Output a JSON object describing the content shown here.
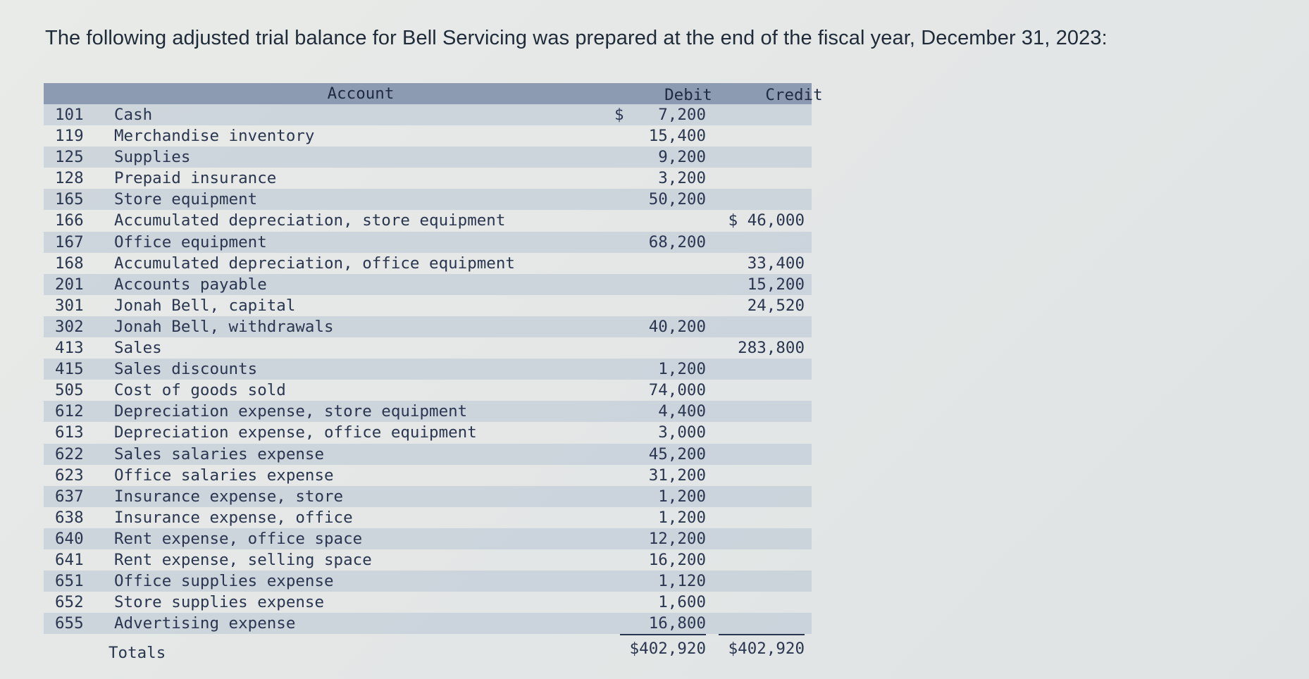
{
  "intro": "The following adjusted trial balance for Bell Servicing was prepared at the end of the fiscal year, December 31, 2023:",
  "table": {
    "headers": {
      "account": "Account",
      "debit": "Debit",
      "credit": "Credit"
    },
    "rows": [
      {
        "num": "101",
        "name": "Cash",
        "debit": "7,200",
        "credit": "",
        "debit_sign": "$"
      },
      {
        "num": "119",
        "name": "Merchandise inventory",
        "debit": "15,400",
        "credit": ""
      },
      {
        "num": "125",
        "name": "Supplies",
        "debit": "9,200",
        "credit": ""
      },
      {
        "num": "128",
        "name": "Prepaid insurance",
        "debit": "3,200",
        "credit": ""
      },
      {
        "num": "165",
        "name": "Store equipment",
        "debit": "50,200",
        "credit": ""
      },
      {
        "num": "166",
        "name": "Accumulated depreciation, store equipment",
        "debit": "",
        "credit": "$ 46,000"
      },
      {
        "num": "167",
        "name": "Office equipment",
        "debit": "68,200",
        "credit": ""
      },
      {
        "num": "168",
        "name": "Accumulated depreciation, office equipment",
        "debit": "",
        "credit": "33,400"
      },
      {
        "num": "201",
        "name": "Accounts payable",
        "debit": "",
        "credit": "15,200"
      },
      {
        "num": "301",
        "name": "Jonah Bell, capital",
        "debit": "",
        "credit": "24,520"
      },
      {
        "num": "302",
        "name": "Jonah Bell, withdrawals",
        "debit": "40,200",
        "credit": ""
      },
      {
        "num": "413",
        "name": "Sales",
        "debit": "",
        "credit": "283,800"
      },
      {
        "num": "415",
        "name": "Sales discounts",
        "debit": "1,200",
        "credit": ""
      },
      {
        "num": "505",
        "name": "Cost of goods sold",
        "debit": "74,000",
        "credit": ""
      },
      {
        "num": "612",
        "name": "Depreciation expense, store equipment",
        "debit": "4,400",
        "credit": ""
      },
      {
        "num": "613",
        "name": "Depreciation expense, office equipment",
        "debit": "3,000",
        "credit": ""
      },
      {
        "num": "622",
        "name": "Sales salaries expense",
        "debit": "45,200",
        "credit": ""
      },
      {
        "num": "623",
        "name": "Office salaries expense",
        "debit": "31,200",
        "credit": ""
      },
      {
        "num": "637",
        "name": "Insurance expense, store",
        "debit": "1,200",
        "credit": ""
      },
      {
        "num": "638",
        "name": "Insurance expense, office",
        "debit": "1,200",
        "credit": ""
      },
      {
        "num": "640",
        "name": "Rent expense, office space",
        "debit": "12,200",
        "credit": ""
      },
      {
        "num": "641",
        "name": "Rent expense, selling space",
        "debit": "16,200",
        "credit": ""
      },
      {
        "num": "651",
        "name": "Office supplies expense",
        "debit": "1,120",
        "credit": ""
      },
      {
        "num": "652",
        "name": "Store supplies expense",
        "debit": "1,600",
        "credit": ""
      },
      {
        "num": "655",
        "name": "Advertising expense",
        "debit": "16,800",
        "credit": ""
      }
    ],
    "totals": {
      "label": "Totals",
      "debit": "$402,920",
      "credit": "$402,920"
    }
  }
}
